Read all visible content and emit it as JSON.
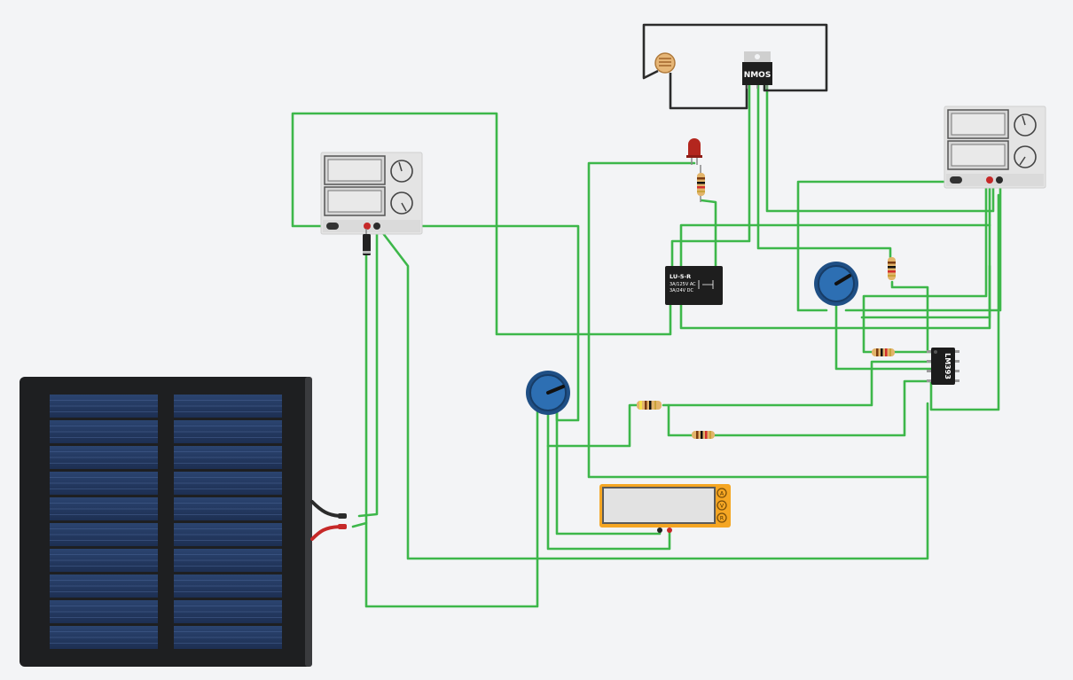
{
  "colors": {
    "canvas_bg": "#f3f4f6",
    "wire_green": "#3db74a",
    "wire_black": "#2b2b2b",
    "wire_red": "#d32f2f",
    "supply_body": "#e4e4e4",
    "solar_frame": "#1e1f21",
    "solar_cell": "#23375e",
    "multimeter_body": "#f5a623",
    "pot_body": "#2d6fb3",
    "led_red": "#b3261e",
    "relay_body": "#1e1e1e",
    "chip_body": "#1c1c1c"
  },
  "components": {
    "mosfet": {
      "label": "NMOS",
      "icon": "nmos-transistor-icon"
    },
    "relay": {
      "part": "LU-5-R",
      "rating_ac": "3A/125V AC",
      "rating_dc": "3A/24V DC"
    },
    "comparator": {
      "part": "LM393"
    },
    "supply_left": {
      "icon": "dc-power-supply-icon"
    },
    "supply_right": {
      "icon": "dc-power-supply-icon"
    },
    "solar_panel": {
      "icon": "solar-panel-icon"
    },
    "multimeter": {
      "icon": "multimeter-icon",
      "modes": [
        "A",
        "V",
        "R"
      ]
    },
    "photoresistor": {
      "icon": "photoresistor-icon"
    },
    "led": {
      "icon": "led-icon"
    },
    "potentiometers": {
      "icon": "potentiometer-icon"
    },
    "diode": {
      "icon": "diode-icon"
    },
    "resistors": {
      "icon": "resistor-icon"
    }
  }
}
